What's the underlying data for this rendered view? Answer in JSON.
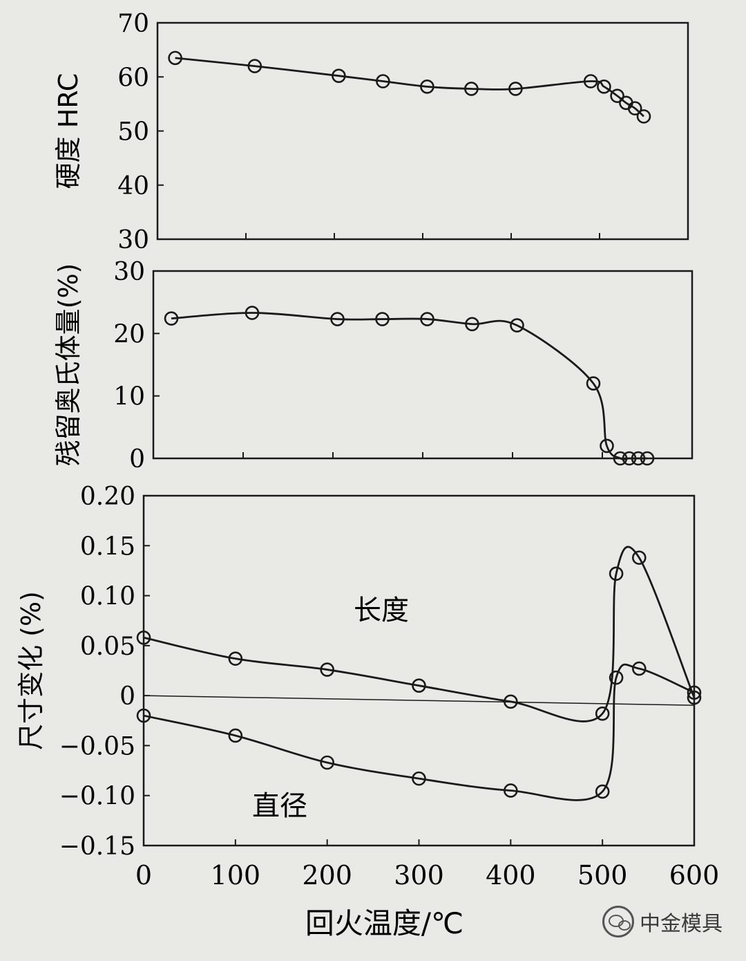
{
  "chart_data": [
    {
      "type": "line",
      "ylabel": "硬度 HRC",
      "ylim": [
        30,
        70
      ],
      "yticks": [
        "30",
        "40",
        "50",
        "60",
        "70"
      ],
      "xlim": [
        0,
        600
      ],
      "series": [
        {
          "name": "",
          "x": [
            20,
            110,
            205,
            255,
            305,
            355,
            405,
            490,
            505,
            520,
            530,
            540,
            550
          ],
          "values": [
            63.5,
            62,
            60.2,
            59.2,
            58.2,
            57.8,
            57.8,
            59.2,
            58.2,
            56.5,
            55.2,
            54.2,
            52.7
          ]
        }
      ]
    },
    {
      "type": "line",
      "ylabel": "残留奥氏体量(%)",
      "ylim": [
        0,
        30
      ],
      "yticks": [
        "0",
        "10",
        "20",
        "30"
      ],
      "xlim": [
        0,
        600
      ],
      "series": [
        {
          "name": "",
          "x": [
            20,
            110,
            205,
            255,
            305,
            355,
            405,
            490,
            505,
            520,
            530,
            540,
            550
          ],
          "values": [
            22.4,
            23.3,
            22.3,
            22.3,
            22.3,
            21.5,
            21.3,
            12,
            2,
            0,
            0,
            0,
            0
          ]
        }
      ]
    },
    {
      "type": "line",
      "ylabel": "尺寸变化 (%)",
      "xlabel": "回火温度/℃",
      "ylim": [
        -0.15,
        0.2
      ],
      "yticks": [
        "-0.15",
        "-0.10",
        "-0.05",
        "0",
        "0.05",
        "0.10",
        "0.15",
        "0.20"
      ],
      "xlim": [
        0,
        600
      ],
      "xticks": [
        "0",
        "100",
        "200",
        "300",
        "400",
        "500",
        "600"
      ],
      "annotations": [
        "长度",
        "直径"
      ],
      "series": [
        {
          "name": "长度",
          "x": [
            0,
            100,
            200,
            300,
            400,
            500,
            515,
            540,
            600
          ],
          "values": [
            0.058,
            0.037,
            0.026,
            0.01,
            -0.006,
            -0.018,
            0.122,
            0.138,
            -0.002
          ]
        },
        {
          "name": "直径",
          "x": [
            0,
            100,
            200,
            300,
            400,
            500,
            515,
            540,
            600
          ],
          "values": [
            -0.02,
            -0.04,
            -0.067,
            -0.083,
            -0.095,
            -0.096,
            0.018,
            0.027,
            0.003
          ]
        }
      ]
    }
  ],
  "watermark": {
    "text": "中金模具",
    "icon": "wechat-icon"
  }
}
